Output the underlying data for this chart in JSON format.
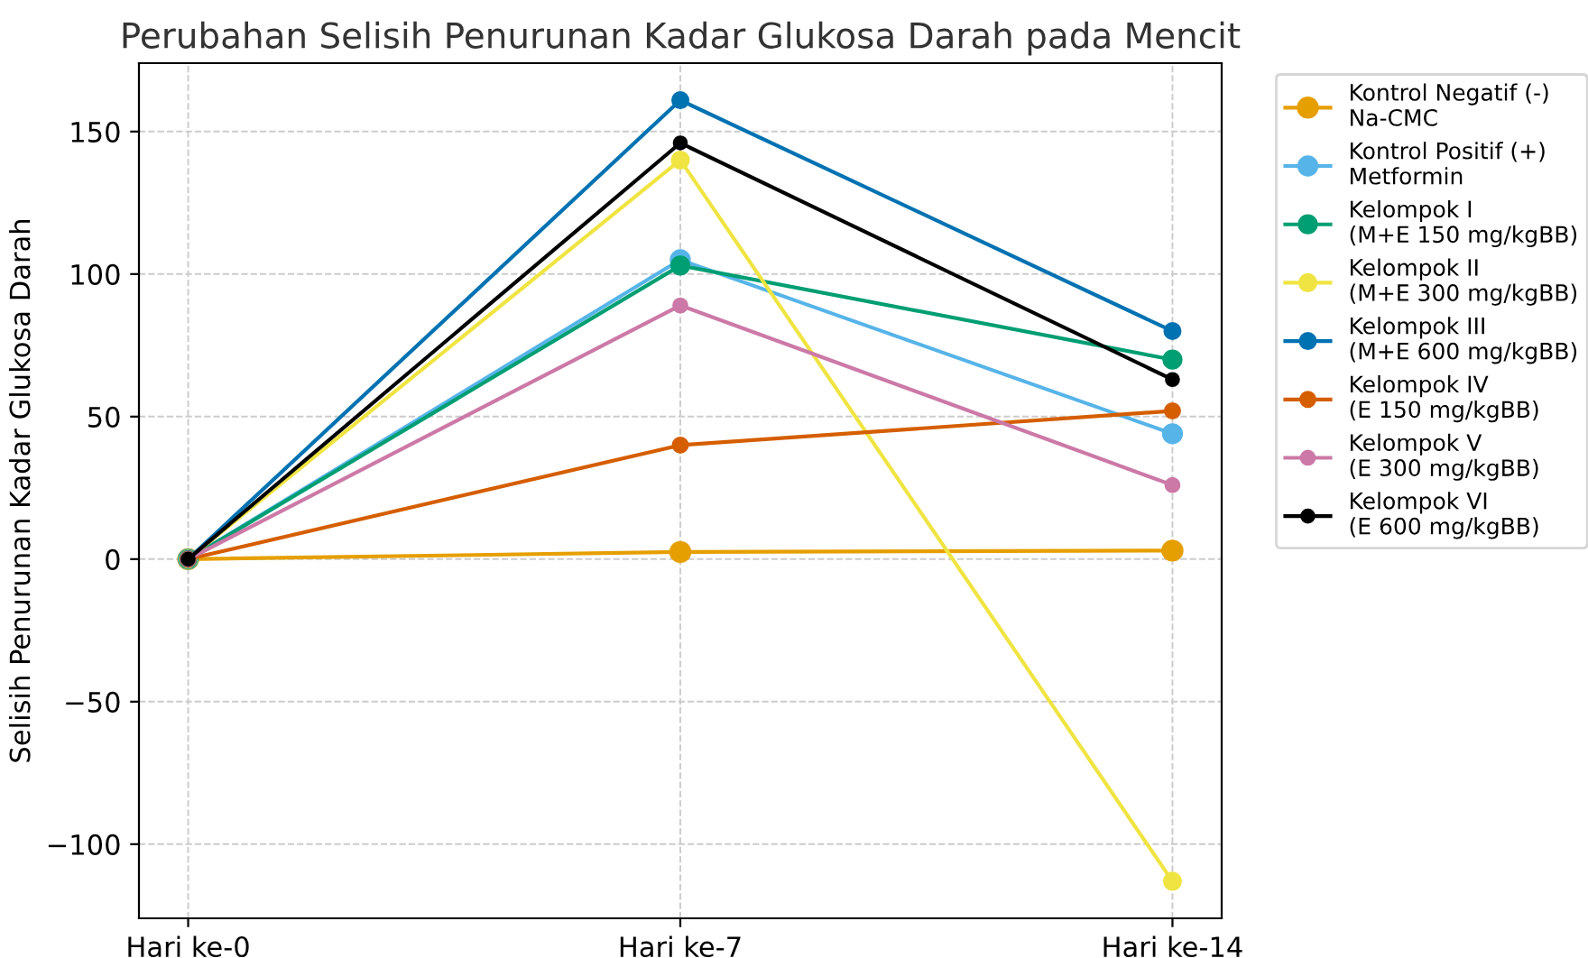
{
  "chart_data": {
    "type": "line",
    "title": "Perubahan Selisih Penurunan Kadar Glukosa Darah pada Mencit",
    "ylabel": "Selisih Penurunan Kadar Glukosa Darah",
    "categories": [
      "Hari ke-0",
      "Hari ke-7",
      "Hari ke-14"
    ],
    "series": [
      {
        "name": "Kontrol Negatif (-)\nNa-CMC",
        "color": "#e69f00",
        "values": [
          0,
          2.5,
          3
        ]
      },
      {
        "name": "Kontrol Positif (+)\nMetformin",
        "color": "#56b4e9",
        "values": [
          0,
          105,
          44
        ]
      },
      {
        "name": "Kelompok I\n(M+E 150 mg/kgBB)",
        "color": "#009e73",
        "values": [
          0,
          103,
          70
        ]
      },
      {
        "name": "Kelompok II\n(M+E 300 mg/kgBB)",
        "color": "#f0e442",
        "values": [
          0,
          140,
          -113
        ]
      },
      {
        "name": "Kelompok III\n(M+E 600 mg/kgBB)",
        "color": "#0072b2",
        "values": [
          0,
          161,
          80
        ]
      },
      {
        "name": "Kelompok IV\n(E 150 mg/kgBB)",
        "color": "#d55e00",
        "values": [
          0,
          40,
          52
        ]
      },
      {
        "name": "Kelompok V\n(E 300 mg/kgBB)",
        "color": "#cc79a7",
        "values": [
          0,
          89,
          26
        ]
      },
      {
        "name": "Kelompok VI\n(E 600 mg/kgBB)",
        "color": "#000000",
        "values": [
          0,
          146,
          63
        ]
      }
    ],
    "ylim": [
      -126,
      174
    ],
    "yticks": [
      {
        "value": -100,
        "label": "−100"
      },
      {
        "value": -50,
        "label": "−50"
      },
      0,
      50,
      100,
      150
    ],
    "grid": true,
    "legend": "right",
    "marker": "circle",
    "line_style": "solid"
  }
}
